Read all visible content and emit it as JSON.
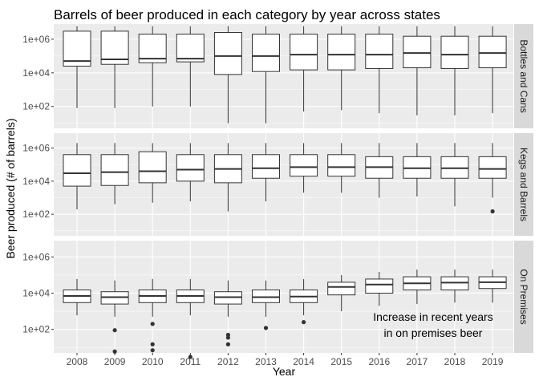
{
  "chart_data": {
    "type": "boxplot",
    "title": "Barrels of beer produced in each category by year across states",
    "xlabel": "Year",
    "ylabel": "Beer produced (# of barrels)",
    "y_scale": "log10",
    "ylim": [
      1,
      10000000
    ],
    "y_ticks": [
      {
        "value": 100,
        "label": "1e+02"
      },
      {
        "value": 10000,
        "label": "1e+04"
      },
      {
        "value": 1000000,
        "label": "1e+06"
      }
    ],
    "categories": [
      "2008",
      "2009",
      "2010",
      "2011",
      "2012",
      "2013",
      "2014",
      "2015",
      "2016",
      "2017",
      "2018",
      "2019"
    ],
    "grid": true,
    "colors": {
      "panel_bg": "#ebebeb",
      "grid": "#ffffff",
      "strip_bg": "#d9d9d9",
      "box_fill": "#ffffff",
      "box_stroke": "#333333",
      "outlier": "#333333"
    },
    "panels": [
      {
        "name": "Bottles and Cans",
        "boxes": [
          {
            "x": "2008",
            "whislo": 80,
            "q1": 25000,
            "med": 50000,
            "q3": 3000000,
            "whishi": 6000000,
            "outliers": []
          },
          {
            "x": "2009",
            "whislo": 80,
            "q1": 32000,
            "med": 63000,
            "q3": 3000000,
            "whishi": 6000000,
            "outliers": []
          },
          {
            "x": "2010",
            "whislo": 100,
            "q1": 40000,
            "med": 70000,
            "q3": 2000000,
            "whishi": 6000000,
            "outliers": []
          },
          {
            "x": "2011",
            "whislo": 100,
            "q1": 45000,
            "med": 70000,
            "q3": 2000000,
            "whishi": 6000000,
            "outliers": []
          },
          {
            "x": "2012",
            "whislo": 10,
            "q1": 8000,
            "med": 100000,
            "q3": 2500000,
            "whishi": 6000000,
            "outliers": []
          },
          {
            "x": "2013",
            "whislo": 10,
            "q1": 12000,
            "med": 100000,
            "q3": 2000000,
            "whishi": 6000000,
            "outliers": []
          },
          {
            "x": "2014",
            "whislo": 50,
            "q1": 15000,
            "med": 120000,
            "q3": 2000000,
            "whishi": 6000000,
            "outliers": []
          },
          {
            "x": "2015",
            "whislo": 60,
            "q1": 15000,
            "med": 120000,
            "q3": 2000000,
            "whishi": 6000000,
            "outliers": []
          },
          {
            "x": "2016",
            "whislo": 40,
            "q1": 18000,
            "med": 120000,
            "q3": 2000000,
            "whishi": 6000000,
            "outliers": []
          },
          {
            "x": "2017",
            "whislo": 30,
            "q1": 20000,
            "med": 150000,
            "q3": 1500000,
            "whishi": 6000000,
            "outliers": []
          },
          {
            "x": "2018",
            "whislo": 30,
            "q1": 18000,
            "med": 120000,
            "q3": 1500000,
            "whishi": 6000000,
            "outliers": []
          },
          {
            "x": "2019",
            "whislo": 40,
            "q1": 20000,
            "med": 150000,
            "q3": 1500000,
            "whishi": 6000000,
            "outliers": []
          }
        ]
      },
      {
        "name": "Kegs and Barrels",
        "boxes": [
          {
            "x": "2008",
            "whislo": 200,
            "q1": 5000,
            "med": 30000,
            "q3": 400000,
            "whishi": 2000000,
            "outliers": []
          },
          {
            "x": "2009",
            "whislo": 400,
            "q1": 5500,
            "med": 35000,
            "q3": 400000,
            "whishi": 2000000,
            "outliers": []
          },
          {
            "x": "2010",
            "whislo": 500,
            "q1": 8000,
            "med": 40000,
            "q3": 600000,
            "whishi": 2000000,
            "outliers": []
          },
          {
            "x": "2011",
            "whislo": 600,
            "q1": 10000,
            "med": 50000,
            "q3": 400000,
            "whishi": 2000000,
            "outliers": []
          },
          {
            "x": "2012",
            "whislo": 150,
            "q1": 8000,
            "med": 55000,
            "q3": 400000,
            "whishi": 2000000,
            "outliers": []
          },
          {
            "x": "2013",
            "whislo": 600,
            "q1": 15000,
            "med": 60000,
            "q3": 400000,
            "whishi": 2000000,
            "outliers": []
          },
          {
            "x": "2014",
            "whislo": 2000,
            "q1": 20000,
            "med": 70000,
            "q3": 400000,
            "whishi": 2000000,
            "outliers": []
          },
          {
            "x": "2015",
            "whislo": 2000,
            "q1": 20000,
            "med": 70000,
            "q3": 400000,
            "whishi": 2000000,
            "outliers": []
          },
          {
            "x": "2016",
            "whislo": 1000,
            "q1": 15000,
            "med": 70000,
            "q3": 300000,
            "whishi": 2000000,
            "outliers": []
          },
          {
            "x": "2017",
            "whislo": 1200,
            "q1": 15000,
            "med": 60000,
            "q3": 300000,
            "whishi": 2000000,
            "outliers": []
          },
          {
            "x": "2018",
            "whislo": 300,
            "q1": 15000,
            "med": 60000,
            "q3": 300000,
            "whishi": 2000000,
            "outliers": []
          },
          {
            "x": "2019",
            "whislo": 1000,
            "q1": 15000,
            "med": 55000,
            "q3": 300000,
            "whishi": 2000000,
            "outliers": [
              150
            ]
          }
        ]
      },
      {
        "name": "On Premises",
        "boxes": [
          {
            "x": "2008",
            "whislo": 600,
            "q1": 3000,
            "med": 7000,
            "q3": 15000,
            "whishi": 60000,
            "outliers": []
          },
          {
            "x": "2009",
            "whislo": 500,
            "q1": 2500,
            "med": 6000,
            "q3": 12000,
            "whishi": 50000,
            "outliers": [
              90,
              6
            ]
          },
          {
            "x": "2010",
            "whislo": 500,
            "q1": 3000,
            "med": 7000,
            "q3": 15000,
            "whishi": 60000,
            "outliers": [
              200,
              15,
              7
            ]
          },
          {
            "x": "2011",
            "whislo": 600,
            "q1": 3000,
            "med": 7000,
            "q3": 15000,
            "whishi": 60000,
            "outliers": [
              3
            ]
          },
          {
            "x": "2012",
            "whislo": 500,
            "q1": 2500,
            "med": 6000,
            "q3": 12000,
            "whishi": 50000,
            "outliers": [
              50,
              35,
              15
            ]
          },
          {
            "x": "2013",
            "whislo": 500,
            "q1": 3000,
            "med": 6000,
            "q3": 15000,
            "whishi": 50000,
            "outliers": [
              120
            ]
          },
          {
            "x": "2014",
            "whislo": 600,
            "q1": 3000,
            "med": 6500,
            "q3": 15000,
            "whishi": 60000,
            "outliers": [
              250
            ]
          },
          {
            "x": "2015",
            "whislo": 1000,
            "q1": 8000,
            "med": 22000,
            "q3": 40000,
            "whishi": 100000,
            "outliers": []
          },
          {
            "x": "2016",
            "whislo": 2000,
            "q1": 10000,
            "med": 30000,
            "q3": 60000,
            "whishi": 150000,
            "outliers": []
          },
          {
            "x": "2017",
            "whislo": 2500,
            "q1": 15000,
            "med": 35000,
            "q3": 80000,
            "whishi": 200000,
            "outliers": []
          },
          {
            "x": "2018",
            "whislo": 3000,
            "q1": 15000,
            "med": 38000,
            "q3": 80000,
            "whishi": 200000,
            "outliers": []
          },
          {
            "x": "2019",
            "whislo": 3000,
            "q1": 18000,
            "med": 40000,
            "q3": 80000,
            "whishi": 200000,
            "outliers": []
          }
        ]
      }
    ],
    "annotations": [
      {
        "panel": "On Premises",
        "text_lines": [
          "Increase in recent years",
          "in on premises beer"
        ]
      }
    ]
  }
}
